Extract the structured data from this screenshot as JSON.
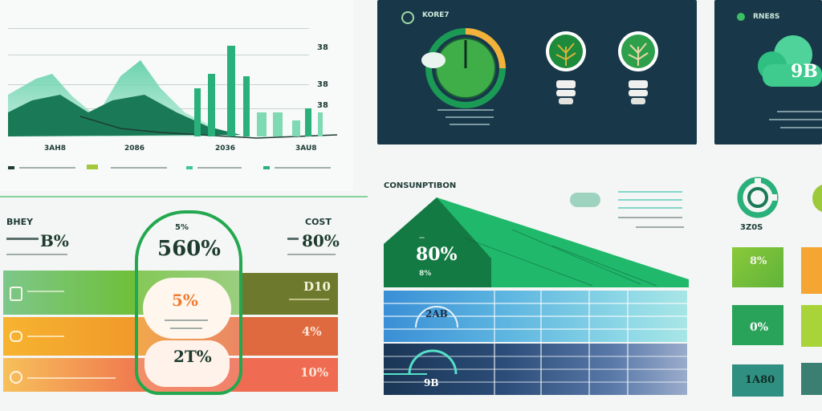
{
  "top_left_chart": {
    "y_ticks": [
      "38",
      "38",
      "38"
    ],
    "x_ticks": [
      "3AH8",
      "2086",
      "2036",
      "3AU8"
    ]
  },
  "dark_panel_1": {
    "title": "KORE7"
  },
  "dark_panel_2": {
    "title": "RNE8S",
    "cloud_value": "9B"
  },
  "left_section": {
    "left_label": "BHEY",
    "left_value": "B%",
    "center_top": "5%",
    "center_value": "560%",
    "center_mid": "5%",
    "center_bottom": "2T%",
    "right_label": "COST",
    "right_value": "80%",
    "row_values": [
      "D10",
      "4%",
      "10%"
    ]
  },
  "consumption": {
    "title": "CONSUNPTIBON",
    "roof_value": "80%",
    "roof_sub": "8%",
    "gauge_label": "2AB",
    "bottom_gauge": "9B"
  },
  "right_section": {
    "label": "3Z0S",
    "tiles": [
      "8%",
      "0%",
      "1A80"
    ]
  },
  "colors": {
    "dark_panel": "#18384a",
    "green": "#1aa86a",
    "accent_orange": "#f07b2f",
    "blue": "#3a8fd6"
  }
}
